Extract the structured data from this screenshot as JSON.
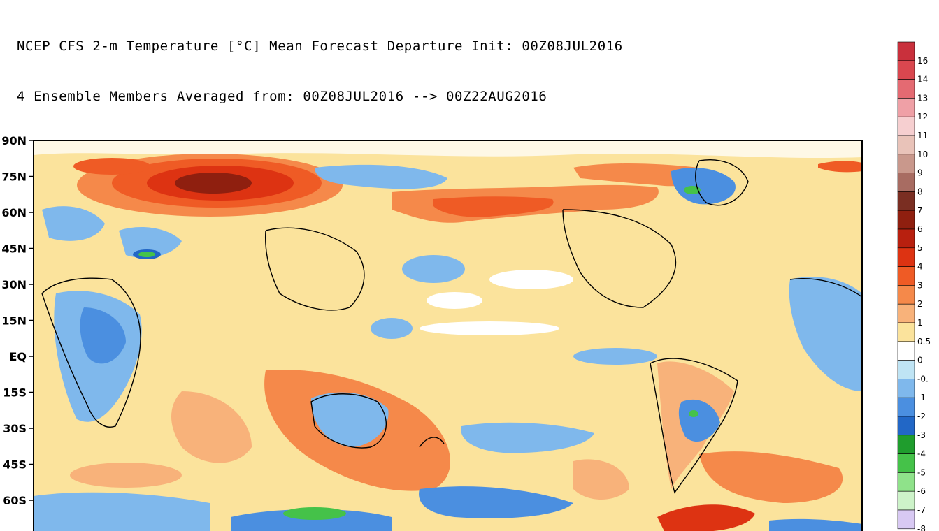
{
  "header": {
    "line1": "NCEP CFS 2-m Temperature [°C] Mean Forecast Departure Init: 00Z08JUL2016",
    "line2": "4 Ensemble Members Averaged from: 00Z08JUL2016 --> 00Z22AUG2016"
  },
  "map": {
    "lat_labels": [
      "90N",
      "75N",
      "60N",
      "45N",
      "30N",
      "15N",
      "EQ",
      "15S",
      "30S",
      "45S",
      "60S"
    ],
    "colors": {
      "land_outline": "#000000",
      "frame": "#000000",
      "background": "#ffffff"
    }
  },
  "colorbar": {
    "entries": [
      {
        "label": "16",
        "color": "#c9303c"
      },
      {
        "label": "14",
        "color": "#d9474f"
      },
      {
        "label": "13",
        "color": "#e46a72"
      },
      {
        "label": "12",
        "color": "#efa0a6"
      },
      {
        "label": "11",
        "color": "#f6cfd0"
      },
      {
        "label": "10",
        "color": "#e9c3b9"
      },
      {
        "label": "9",
        "color": "#c9988c"
      },
      {
        "label": "8",
        "color": "#a86c62"
      },
      {
        "label": "7",
        "color": "#7a2e22"
      },
      {
        "label": "6",
        "color": "#8f1f0f"
      },
      {
        "label": "5",
        "color": "#b8200f"
      },
      {
        "label": "4",
        "color": "#dd3312"
      },
      {
        "label": "3",
        "color": "#ef5b25"
      },
      {
        "label": "2",
        "color": "#f5894a"
      },
      {
        "label": "1",
        "color": "#f8b27a"
      },
      {
        "label": "0.5",
        "color": "#fbe39c"
      },
      {
        "label": "0",
        "color": "#ffffff"
      },
      {
        "label": "-0.",
        "color": "#bfe4f4"
      },
      {
        "label": "-1",
        "color": "#7fb8ec"
      },
      {
        "label": "-2",
        "color": "#4b8fe0"
      },
      {
        "label": "-3",
        "color": "#2267c6"
      },
      {
        "label": "-4",
        "color": "#1f9d2d"
      },
      {
        "label": "-5",
        "color": "#45c249"
      },
      {
        "label": "-6",
        "color": "#8fe28a"
      },
      {
        "label": "-7",
        "color": "#cdf3c9"
      },
      {
        "label": "-8",
        "color": "#d8c9f3"
      }
    ]
  }
}
